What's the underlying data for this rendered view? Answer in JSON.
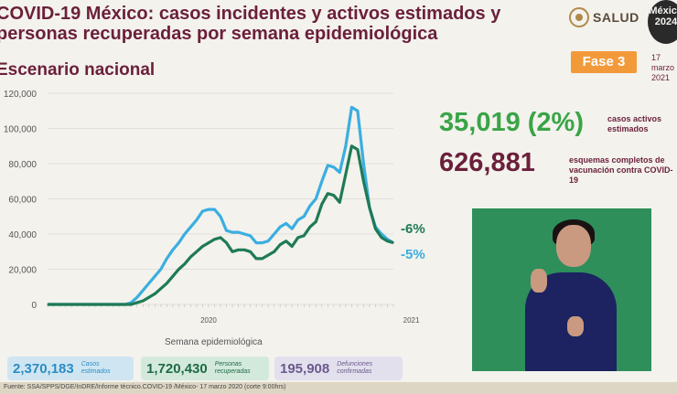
{
  "header": {
    "title_line1": "COVID-19 México: casos incidentes y activos estimados y",
    "title_line2": "personas recuperadas por semana epidemiológica",
    "subtitle": "Escenario nacional",
    "logo_text": "SALUD",
    "seal_text": "México 2024",
    "phase": "Fase 3",
    "date_line1": "17 marzo",
    "date_line2": "2021"
  },
  "stats": {
    "active_value": "35,019 (2%)",
    "active_label": "casos activos estimados",
    "vaccine_value": "626,881",
    "vaccine_label": "esquemas completos de vacunación contra COVID-19"
  },
  "cards": [
    {
      "value": "2,370,183",
      "label": "Casos estimados"
    },
    {
      "value": "1,720,430",
      "label": "Personas recuperadas"
    },
    {
      "value": "195,908",
      "label": "Defunciones confirmadas"
    }
  ],
  "source": "Fuente: SSA/SPPS/DGE/InDRE/Informe técnico.COVID-19 /México- 17 marzo 2020 (corte 9:00hrs)",
  "colors": {
    "estimated": "#3aaee0",
    "recovered": "#1f7a55",
    "accent": "#f29a3a"
  },
  "chart_data": {
    "type": "line",
    "xlabel": "Semana epidemiológica",
    "ylim": [
      0,
      120000
    ],
    "yticks": [
      0,
      20000,
      40000,
      60000,
      80000,
      100000,
      120000
    ],
    "ytick_labels": [
      "0",
      "20,000",
      "40,000",
      "60,000",
      "80,000",
      "100,000",
      "120,000"
    ],
    "x_labels": [
      {
        "week": 27,
        "label": "2020"
      },
      {
        "week": 61,
        "label": "2021"
      }
    ],
    "series": [
      {
        "name": "Casos estimados",
        "color": "#3aaee0",
        "end_label": "-5%",
        "values": [
          0,
          0,
          0,
          0,
          0,
          0,
          0,
          0,
          0,
          0,
          0,
          0,
          0,
          0,
          1000,
          4000,
          8000,
          12000,
          16000,
          20000,
          26000,
          31000,
          35000,
          40000,
          44000,
          48000,
          53000,
          54000,
          54000,
          50000,
          42000,
          41000,
          41000,
          40000,
          39000,
          35000,
          35000,
          36000,
          40000,
          44000,
          46000,
          43000,
          48000,
          50000,
          56000,
          60000,
          70000,
          79000,
          78000,
          75000,
          90000,
          112000,
          110000,
          80000,
          55000,
          44000,
          40000,
          37000,
          35000
        ]
      },
      {
        "name": "Personas recuperadas",
        "color": "#1f7a55",
        "end_label": "-6%",
        "values": [
          0,
          0,
          0,
          0,
          0,
          0,
          0,
          0,
          0,
          0,
          0,
          0,
          0,
          0,
          0,
          1000,
          2000,
          4000,
          6000,
          9000,
          12000,
          16000,
          20000,
          23000,
          27000,
          30000,
          33000,
          35000,
          37000,
          38000,
          35000,
          30000,
          31000,
          31000,
          30000,
          26000,
          26000,
          28000,
          30000,
          34000,
          36000,
          33000,
          38000,
          39000,
          44000,
          47000,
          57000,
          63000,
          62000,
          58000,
          74000,
          90000,
          88000,
          70000,
          55000,
          43000,
          38000,
          36000,
          35000
        ]
      }
    ]
  }
}
